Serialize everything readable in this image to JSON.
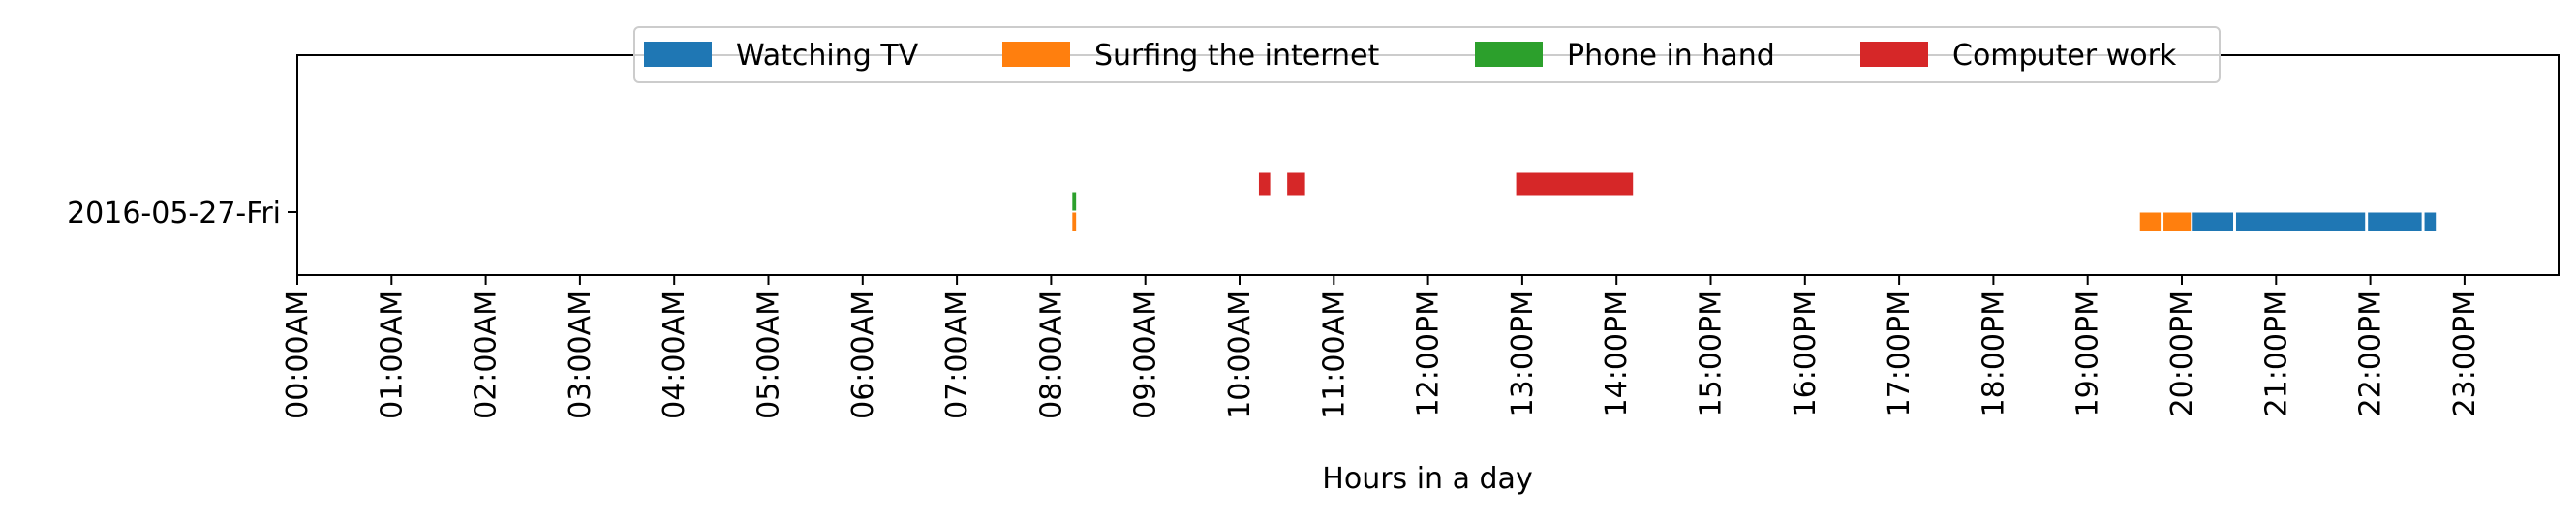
{
  "chart_data": {
    "type": "timeline",
    "xlabel": "Hours in a day",
    "ylabel": "",
    "xlim": [
      0,
      24
    ],
    "grid": false,
    "legend_position": "top-center",
    "row_label": "2016-05-27-Fri",
    "x_tick_labels": [
      "00:00AM",
      "01:00AM",
      "02:00AM",
      "03:00AM",
      "04:00AM",
      "05:00AM",
      "06:00AM",
      "07:00AM",
      "08:00AM",
      "09:00AM",
      "10:00AM",
      "11:00AM",
      "12:00PM",
      "13:00PM",
      "14:00PM",
      "15:00PM",
      "16:00PM",
      "17:00PM",
      "18:00PM",
      "19:00PM",
      "20:00PM",
      "21:00PM",
      "22:00PM",
      "23:00PM"
    ],
    "series": [
      {
        "name": "Watching TV",
        "color": "#1f77b4",
        "lane": 0,
        "intervals": [
          [
            19.55,
            19.78
          ],
          [
            19.8,
            20.05
          ],
          [
            20.07,
            20.55
          ],
          [
            20.57,
            21.95
          ],
          [
            21.97,
            22.55
          ],
          [
            22.57,
            22.7
          ]
        ]
      },
      {
        "name": "Surfing the internet",
        "color": "#ff7f0e",
        "lane": 1,
        "intervals": [
          [
            8.22,
            8.27
          ],
          [
            19.55,
            19.78
          ],
          [
            19.8,
            20.1
          ]
        ]
      },
      {
        "name": "Phone in hand",
        "color": "#2ca02c",
        "lane": 2,
        "intervals": [
          [
            8.22,
            8.27
          ]
        ]
      },
      {
        "name": "Computer work",
        "color": "#d62728",
        "lane": 3,
        "intervals": [
          [
            10.2,
            10.33
          ],
          [
            10.5,
            10.7
          ],
          [
            12.93,
            14.18
          ]
        ]
      }
    ]
  }
}
